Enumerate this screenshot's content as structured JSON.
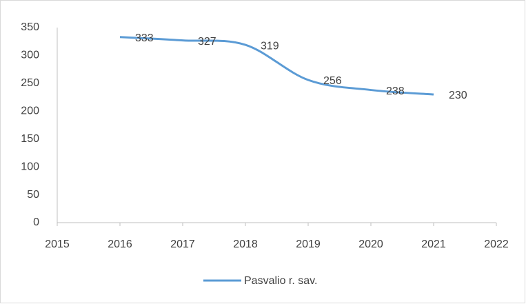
{
  "chart_data": {
    "type": "line",
    "x": [
      2016,
      2017,
      2018,
      2019,
      2020,
      2021
    ],
    "series": [
      {
        "name": "Pasvalio r. sav.",
        "color": "#5b9bd5",
        "values": [
          333,
          327,
          319,
          256,
          238,
          230
        ]
      }
    ],
    "xlim": [
      2015,
      2022
    ],
    "xticks": [
      2015,
      2016,
      2017,
      2018,
      2019,
      2020,
      2021,
      2022
    ],
    "ylim": [
      0,
      350
    ],
    "yticks": [
      0,
      50,
      100,
      150,
      200,
      250,
      300,
      350
    ],
    "grid": false,
    "smooth": true,
    "data_labels": true,
    "legend": "bottom"
  }
}
